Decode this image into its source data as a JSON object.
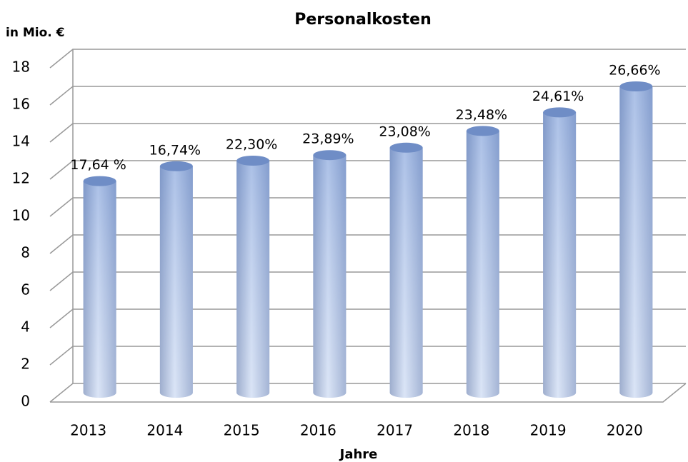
{
  "chart_data": {
    "type": "bar3d",
    "title": "Personalkosten",
    "y_label": "in Mio. €",
    "x_label": "Jahre",
    "categories": [
      "2013",
      "2014",
      "2015",
      "2016",
      "2017",
      "2018",
      "2019",
      "2020"
    ],
    "values": [
      11.4,
      12.2,
      12.5,
      12.8,
      13.2,
      14.1,
      15.1,
      16.5
    ],
    "annotations": [
      "17,64 %",
      "16,74%",
      "22,30%",
      "23,89%",
      "23,08%",
      "23,48%",
      "24,61%",
      "26,66%"
    ],
    "color": "#8faadc",
    "ylim": [
      0,
      18
    ],
    "yticks": [
      0,
      2,
      4,
      6,
      8,
      10,
      12,
      14,
      16,
      18
    ],
    "grid": true
  }
}
